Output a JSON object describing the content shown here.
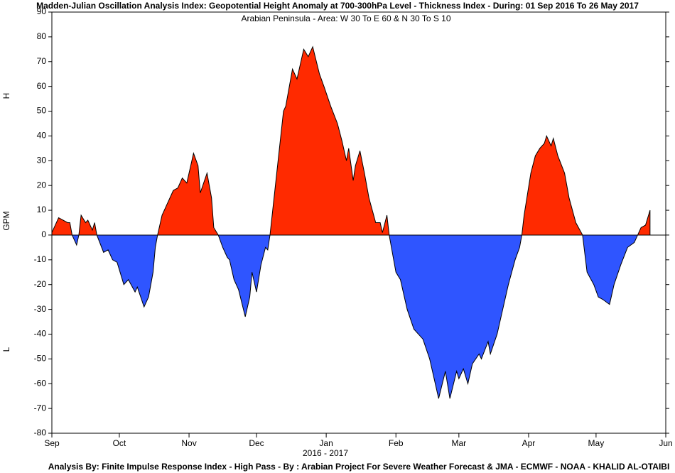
{
  "chart_data": {
    "type": "area",
    "title": "Madden-Julian Oscillation Analysis Index: Geopotential Height Anomaly at 700-300hPa Level - Thickness Index - During: 01 Sep 2016 To 26 May 2017",
    "subtitle": "Arabian Peninsula - Area: W 30 To E 60 & N 30 To S 10",
    "ylabel": "GPM",
    "upper_label": "H",
    "lower_label": "L",
    "xlabel": "2016 - 2017",
    "footer": "Analysis By: Finite Impulse Response Index - High Pass - By : Arabian Project For Severe Weather Forecast & JMA - ECMWF - NOAA - KHALID AL-OTAIBI",
    "positive_color": "#ff2a00",
    "negative_color": "#2f55ff",
    "x": [
      0,
      3,
      7,
      8,
      9,
      11,
      12,
      13,
      15,
      16,
      18,
      19,
      20,
      23,
      25,
      27,
      29,
      32,
      34,
      37,
      38,
      41,
      43,
      45,
      46,
      47,
      49,
      51,
      54,
      56,
      58,
      60,
      63,
      65,
      66,
      69,
      71,
      72,
      74,
      76,
      78,
      79,
      81,
      83,
      86,
      88,
      89,
      91,
      93,
      95,
      96,
      97,
      100,
      103,
      104,
      107,
      109,
      112,
      114,
      116,
      119,
      121,
      124,
      127,
      129,
      131,
      132,
      134,
      135,
      137,
      139,
      141,
      144,
      146,
      147,
      149,
      150,
      153,
      155,
      158,
      161,
      165,
      168,
      170,
      172,
      175,
      177,
      180,
      181,
      183,
      185,
      187,
      190,
      191,
      194,
      195,
      198,
      200,
      203,
      206,
      208,
      209,
      210,
      213,
      215,
      217,
      219,
      220,
      222,
      223,
      225,
      228,
      230,
      233,
      236,
      238,
      241,
      243,
      245,
      248,
      250,
      253,
      256,
      259,
      262,
      264,
      266
    ],
    "values": [
      1,
      7,
      5,
      5,
      0,
      -4,
      0,
      8,
      5,
      6,
      2,
      5,
      0,
      -7,
      -6,
      -10,
      -11,
      -20,
      -18,
      -23,
      -21,
      -29,
      -25,
      -15,
      -5,
      0,
      8,
      12,
      18,
      19,
      23,
      21,
      33,
      28,
      17,
      25,
      15,
      3,
      0,
      -5,
      -9,
      -10,
      -18,
      -22,
      -33,
      -25,
      -15,
      -23,
      -12,
      -5,
      -6,
      0,
      25,
      50,
      52,
      67,
      63,
      75,
      72,
      76,
      65,
      60,
      52,
      45,
      38,
      30,
      35,
      22,
      28,
      34,
      25,
      15,
      5,
      5,
      1,
      8,
      0,
      -15,
      -18,
      -30,
      -38,
      -42,
      -50,
      -58,
      -66,
      -55,
      -66,
      -55,
      -58,
      -54,
      -60,
      -52,
      -48,
      -50,
      -43,
      -48,
      -40,
      -32,
      -20,
      -10,
      -5,
      0,
      8,
      25,
      32,
      35,
      37,
      40,
      36,
      39,
      32,
      25,
      15,
      5,
      0,
      -15,
      -20,
      -25,
      -26,
      -28,
      -20,
      -12,
      -5,
      -3,
      3,
      4,
      10
    ],
    "xlim": [
      0,
      273
    ],
    "xticks": [
      {
        "value": 0,
        "label": "Sep"
      },
      {
        "value": 30,
        "label": "Oct"
      },
      {
        "value": 61,
        "label": "Nov"
      },
      {
        "value": 91,
        "label": "Dec"
      },
      {
        "value": 122,
        "label": "Jan"
      },
      {
        "value": 153,
        "label": "Feb"
      },
      {
        "value": 181,
        "label": "Mar"
      },
      {
        "value": 212,
        "label": "Apr"
      },
      {
        "value": 242,
        "label": "May"
      },
      {
        "value": 273,
        "label": "Jun"
      }
    ],
    "ylim": [
      -80,
      90
    ],
    "yticks": [
      -80,
      -70,
      -60,
      -50,
      -40,
      -30,
      -20,
      -10,
      0,
      10,
      20,
      30,
      40,
      50,
      60,
      70,
      80,
      90
    ]
  }
}
